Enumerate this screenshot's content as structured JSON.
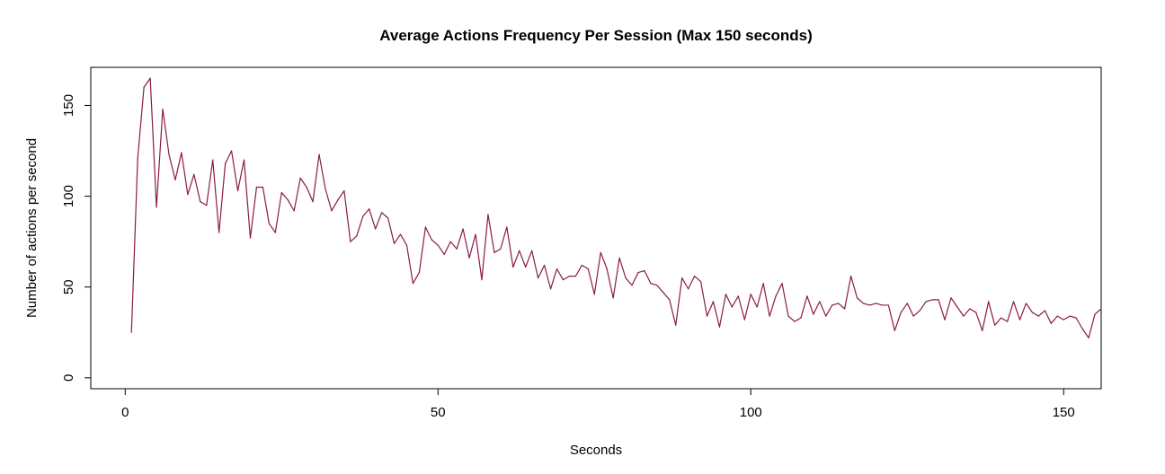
{
  "chart_data": {
    "type": "line",
    "title": "Average Actions Frequency Per Session (Max 150 seconds)",
    "xlabel": "Seconds",
    "ylabel": "Number of actions per second",
    "xlim": [
      -5.5,
      156
    ],
    "ylim": [
      -6,
      171
    ],
    "x_ticks": [
      0,
      50,
      100,
      150
    ],
    "y_ticks": [
      0,
      50,
      100,
      150
    ],
    "x_tick_labels": [
      "0",
      "50",
      "100",
      "150"
    ],
    "y_tick_labels": [
      "0",
      "50",
      "100",
      "150"
    ],
    "line_color": "#8B1A4A",
    "grid": false,
    "series": [
      {
        "x": [
          1,
          2,
          3,
          4,
          5,
          6,
          7,
          8,
          9,
          10,
          11,
          12,
          13,
          14,
          15,
          16,
          17,
          18,
          19,
          20,
          21,
          22,
          23,
          24,
          25,
          26,
          27,
          28,
          29,
          30,
          31,
          32,
          33,
          34,
          35,
          36,
          37,
          38,
          39,
          40,
          41,
          42,
          43,
          44,
          45,
          46,
          47,
          48,
          49,
          50,
          51,
          52,
          53,
          54,
          55,
          56,
          57,
          58,
          59,
          60,
          61,
          62,
          63,
          64,
          65,
          66,
          67,
          68,
          69,
          70,
          71,
          72,
          73,
          74,
          75,
          76,
          77,
          78,
          79,
          80,
          81,
          82,
          83,
          84,
          85,
          86,
          87,
          88,
          89,
          90,
          91,
          92,
          93,
          94,
          95,
          96,
          97,
          98,
          99,
          100,
          101,
          102,
          103,
          104,
          105,
          106,
          107,
          108,
          109,
          110,
          111,
          112,
          113,
          114,
          115,
          116,
          117,
          118,
          119,
          120,
          121,
          122,
          123,
          124,
          125,
          126,
          127,
          128,
          129,
          130,
          131,
          132,
          133,
          134,
          135,
          136,
          137,
          138,
          139,
          140,
          141,
          142,
          143,
          144,
          145,
          146,
          147,
          148,
          149,
          150,
          151,
          152,
          153,
          154,
          155,
          156
        ],
        "values": [
          25,
          121,
          160,
          165,
          94,
          148,
          123,
          109,
          124,
          101,
          112,
          97,
          95,
          120,
          80,
          118,
          125,
          103,
          120,
          77,
          105,
          105,
          85,
          80,
          102,
          98,
          92,
          110,
          105,
          97,
          123,
          104,
          92,
          98,
          103,
          75,
          78,
          89,
          93,
          82,
          91,
          88,
          74,
          79,
          73,
          52,
          58,
          83,
          76,
          73,
          68,
          75,
          71,
          82,
          66,
          79,
          54,
          90,
          69,
          71,
          83,
          61,
          70,
          61,
          70,
          55,
          62,
          49,
          60,
          54,
          56,
          56,
          62,
          60,
          46,
          69,
          60,
          44,
          66,
          55,
          51,
          58,
          59,
          52,
          51,
          47,
          43,
          29,
          55,
          49,
          56,
          53,
          34,
          42,
          28,
          46,
          39,
          45,
          32,
          46,
          39,
          52,
          34,
          45,
          52,
          34,
          31,
          33,
          45,
          35,
          42,
          34,
          40,
          41,
          38,
          56,
          44,
          41,
          40,
          41,
          40,
          40,
          26,
          36,
          41,
          34,
          37,
          42,
          43,
          43,
          32,
          44,
          39,
          34,
          38,
          36,
          26,
          42,
          29,
          33,
          31,
          42,
          32,
          41,
          36,
          34,
          37,
          30,
          34,
          32,
          34,
          33,
          27,
          22,
          35,
          38
        ]
      }
    ]
  }
}
